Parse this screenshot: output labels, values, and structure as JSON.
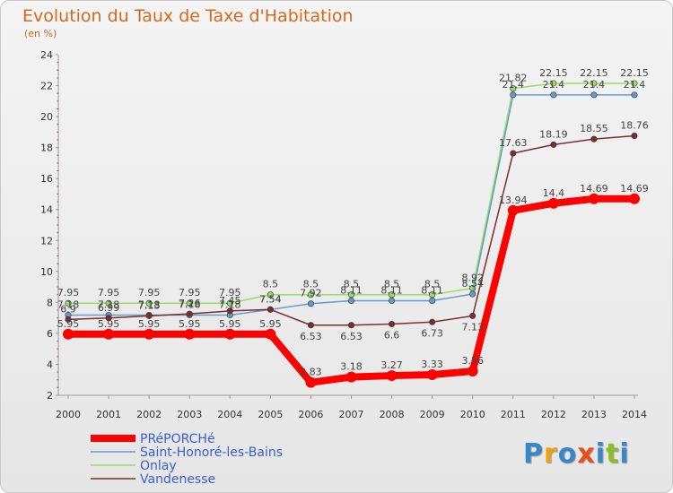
{
  "chart_data": {
    "type": "line",
    "title": "Evolution du Taux de Taxe d'Habitation",
    "subtitle": "(en %)",
    "x": [
      "2000",
      "2001",
      "2002",
      "2003",
      "2004",
      "2005",
      "2006",
      "2007",
      "2008",
      "2009",
      "2010",
      "2011",
      "2012",
      "2013",
      "2014"
    ],
    "ylim": [
      2,
      24
    ],
    "yticks": [
      2,
      4,
      6,
      8,
      10,
      12,
      14,
      16,
      18,
      20,
      22,
      24
    ],
    "grid": false,
    "legend_position": "bottom-left",
    "series": [
      {
        "name": "PRéPORCHé",
        "color": "#ff0000",
        "values": [
          5.95,
          5.95,
          5.95,
          5.95,
          5.95,
          5.95,
          2.83,
          3.18,
          3.27,
          3.33,
          3.56,
          13.94,
          14.4,
          14.69,
          14.69
        ]
      },
      {
        "name": "Saint-Honoré-les-Bains",
        "color": "#6699cc",
        "values": [
          7.18,
          7.18,
          7.18,
          7.18,
          7.18,
          7.54,
          7.92,
          8.11,
          8.11,
          8.11,
          8.54,
          21.4,
          21.4,
          21.4,
          21.4
        ]
      },
      {
        "name": "Onlay",
        "color": "#99dd66",
        "values": [
          7.95,
          7.95,
          7.95,
          7.95,
          7.95,
          8.5,
          8.5,
          8.5,
          8.5,
          8.5,
          8.92,
          21.82,
          22.15,
          22.15,
          22.15
        ]
      },
      {
        "name": "Vandenesse",
        "color": "#7a2e2e",
        "values": [
          6.9,
          6.99,
          7.13,
          7.26,
          7.45,
          7.54,
          6.53,
          6.53,
          6.6,
          6.73,
          7.13,
          17.63,
          18.19,
          18.55,
          18.76
        ]
      }
    ],
    "data_labels": {
      "PRéPORCHé": [
        "5.95",
        "5.95",
        "5.95",
        "5.95",
        "5.95",
        "5.95",
        "2.83",
        "3.18",
        "3.27",
        "3.33",
        "3.56",
        "13.94",
        "14.4",
        "14.69",
        "14.69"
      ],
      "Saint-Honoré-les-Bains": [
        "7.18",
        "7.18",
        "7.18",
        "7.18",
        "7.18",
        "7.54",
        "7.92",
        "8.11",
        "8.11",
        "8.11",
        "8.54",
        "21.4",
        "21.4",
        "21.4",
        "21.4"
      ],
      "Onlay": [
        "7.95",
        "7.95",
        "7.95",
        "7.95",
        "7.95",
        "8.5",
        "8.5",
        "8.5",
        "8.5",
        "8.5",
        "8.92",
        "21.82",
        "22.15",
        "22.15",
        "22.15"
      ],
      "Vandenesse": [
        "6.9",
        "6.99",
        "7.13",
        "7.26",
        "7.45",
        "7.54",
        "6.53",
        "6.53",
        "6.6",
        "6.73",
        "7.13",
        "17.63",
        "18.19",
        "18.55",
        "18.76"
      ]
    }
  },
  "logo": {
    "text": "Proxiti",
    "colors": [
      "#3a87c8",
      "#e8a317",
      "#3a87c8",
      "#e84f17",
      "#3a87c8",
      "#8cbf26",
      "#3a87c8"
    ]
  }
}
